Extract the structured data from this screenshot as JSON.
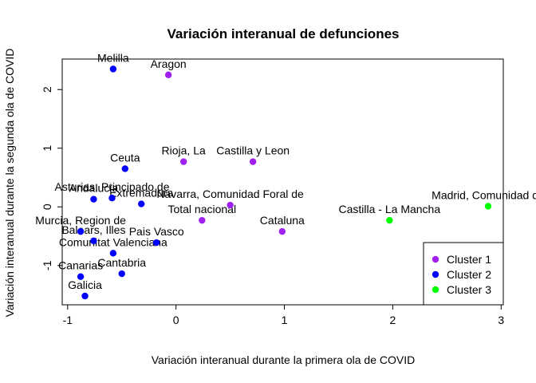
{
  "chart_data": {
    "type": "scatter",
    "title": "Variación interanual de defunciones",
    "xlabel": "Variación interanual durante la primera ola de COVID",
    "ylabel": "Variación interanual durante la segunda ola de COVID",
    "xlim": [
      -1.05,
      3.02
    ],
    "ylim": [
      -1.67,
      2.52
    ],
    "x_ticks": [
      -1,
      0,
      1,
      2,
      3
    ],
    "y_ticks": [
      -1,
      0,
      1,
      2
    ],
    "grid": false,
    "legend": {
      "position": "bottom-right",
      "entries": [
        {
          "label": "Cluster 1",
          "color": "#a020f0"
        },
        {
          "label": "Cluster 2",
          "color": "#0000ff"
        },
        {
          "label": "Cluster 3",
          "color": "#00ff00"
        }
      ]
    },
    "points": [
      {
        "label": "Melilla",
        "x": -0.58,
        "y": 2.35,
        "cluster": 2
      },
      {
        "label": "Aragon",
        "x": -0.07,
        "y": 2.25,
        "cluster": 1
      },
      {
        "label": "Rioja, La",
        "x": 0.07,
        "y": 0.77,
        "cluster": 1
      },
      {
        "label": "Castilla y Leon",
        "x": 0.71,
        "y": 0.77,
        "cluster": 1
      },
      {
        "label": "Ceuta",
        "x": -0.47,
        "y": 0.65,
        "cluster": 2
      },
      {
        "label": "Asturias, Principado de",
        "x": -0.59,
        "y": 0.15,
        "cluster": 2
      },
      {
        "label": "Andalucia",
        "x": -0.76,
        "y": 0.13,
        "cluster": 2
      },
      {
        "label": "Extremadura",
        "x": -0.32,
        "y": 0.05,
        "cluster": 2
      },
      {
        "label": "Navarra, Comunidad Foral de",
        "x": 0.5,
        "y": 0.03,
        "cluster": 1
      },
      {
        "label": "Total nacional",
        "x": 0.24,
        "y": -0.23,
        "cluster": 1
      },
      {
        "label": "Cataluna",
        "x": 0.98,
        "y": -0.42,
        "cluster": 1
      },
      {
        "label": "Castilla - La Mancha",
        "x": 1.97,
        "y": -0.23,
        "cluster": 3
      },
      {
        "label": "Madrid, Comunidad de",
        "x": 2.88,
        "y": 0.01,
        "cluster": 3
      },
      {
        "label": "Murcia, Region de",
        "x": -0.88,
        "y": -0.42,
        "cluster": 2
      },
      {
        "label": "Balears, Illes",
        "x": -0.76,
        "y": -0.58,
        "cluster": 2
      },
      {
        "label": "Comunitat Valenciana",
        "x": -0.58,
        "y": -0.79,
        "cluster": 2
      },
      {
        "label": "Pais Vasco",
        "x": -0.18,
        "y": -0.61,
        "cluster": 2
      },
      {
        "label": "Cantabria",
        "x": -0.5,
        "y": -1.14,
        "cluster": 2
      },
      {
        "label": "Canarias",
        "x": -0.88,
        "y": -1.19,
        "cluster": 2
      },
      {
        "label": "Galicia",
        "x": -0.84,
        "y": -1.52,
        "cluster": 2
      }
    ]
  }
}
